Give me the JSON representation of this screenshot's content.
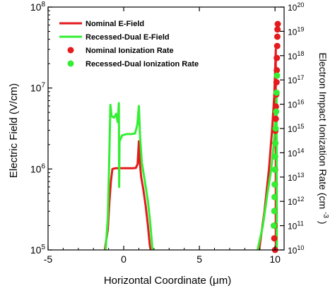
{
  "chart_data": {
    "type": "line",
    "xlabel": "Horizontal Coordinate (μm)",
    "ylabel_left": "Electric Field (V/cm)",
    "ylabel_right_main": "Electron Impact Ionization Rate (cm",
    "ylabel_right_sup": "-3",
    "ylabel_right_close": ")",
    "xlim": [
      -5,
      10.6
    ],
    "ylim_left": [
      100000,
      100000000
    ],
    "ylim_right": [
      10000000000.0,
      1e+20
    ],
    "x_ticks": [
      {
        "value": -5,
        "label": "-5"
      },
      {
        "value": 0,
        "label": "0"
      },
      {
        "value": 5,
        "label": "5"
      },
      {
        "value": 10,
        "label": "10"
      }
    ],
    "y_left_ticks": [
      {
        "exp": 5,
        "label_base": "10",
        "label_exp": "5"
      },
      {
        "exp": 6,
        "label_base": "10",
        "label_exp": "6"
      },
      {
        "exp": 7,
        "label_base": "10",
        "label_exp": "7"
      },
      {
        "exp": 8,
        "label_base": "10",
        "label_exp": "8"
      }
    ],
    "y_right_ticks": [
      {
        "exp": 10,
        "label_base": "10",
        "label_exp": "10"
      },
      {
        "exp": 11,
        "label_base": "10",
        "label_exp": "11"
      },
      {
        "exp": 12,
        "label_base": "10",
        "label_exp": "12"
      },
      {
        "exp": 13,
        "label_base": "10",
        "label_exp": "13"
      },
      {
        "exp": 14,
        "label_base": "10",
        "label_exp": "14"
      },
      {
        "exp": 15,
        "label_base": "10",
        "label_exp": "15"
      },
      {
        "exp": 16,
        "label_base": "10",
        "label_exp": "16"
      },
      {
        "exp": 17,
        "label_base": "10",
        "label_exp": "17"
      },
      {
        "exp": 18,
        "label_base": "10",
        "label_exp": "18"
      },
      {
        "exp": 19,
        "label_base": "10",
        "label_exp": "19"
      },
      {
        "exp": 20,
        "label_base": "10",
        "label_exp": "20"
      }
    ],
    "grid": false,
    "legend_position": "top-left",
    "series": [
      {
        "name": "Nominal E-Field",
        "kind": "line",
        "axis": "left",
        "color": "#e41a1c",
        "points": [
          [
            -1.25,
            100000
          ],
          [
            -1.05,
            180000
          ],
          [
            -0.95,
            380000
          ],
          [
            -0.85,
            700000
          ],
          [
            -0.75,
            1000000
          ],
          [
            -0.55,
            1020000
          ],
          [
            -0.3,
            1020000
          ],
          [
            0.0,
            1020000
          ],
          [
            0.3,
            1020000
          ],
          [
            0.6,
            1020000
          ],
          [
            0.8,
            1030000
          ],
          [
            0.92,
            1150000
          ],
          [
            1.0,
            2200000
          ],
          [
            1.05,
            1300000
          ],
          [
            1.15,
            800000
          ],
          [
            1.3,
            550000
          ],
          [
            1.45,
            350000
          ],
          [
            1.6,
            200000
          ],
          [
            1.72,
            115000
          ],
          [
            1.78,
            100000
          ]
        ]
      },
      {
        "name": "Recessed-Dual E-Field",
        "kind": "line",
        "axis": "left",
        "color": "#33ee33",
        "points": [
          [
            -1.2,
            100000
          ],
          [
            -1.05,
            250000
          ],
          [
            -0.95,
            1500000
          ],
          [
            -0.88,
            6200000
          ],
          [
            -0.8,
            4500000
          ],
          [
            -0.65,
            4300000
          ],
          [
            -0.5,
            4800000
          ],
          [
            -0.4,
            3800000
          ],
          [
            -0.32,
            6500000
          ],
          [
            -0.3,
            600000
          ],
          [
            -0.28,
            2200000
          ],
          [
            -0.1,
            2600000
          ],
          [
            0.2,
            2700000
          ],
          [
            0.5,
            2700000
          ],
          [
            0.75,
            2750000
          ],
          [
            0.9,
            3500000
          ],
          [
            1.0,
            6000000
          ],
          [
            1.08,
            2500000
          ],
          [
            1.2,
            1200000
          ],
          [
            1.4,
            700000
          ],
          [
            1.6,
            400000
          ],
          [
            1.75,
            220000
          ],
          [
            1.85,
            130000
          ],
          [
            1.9,
            100000
          ]
        ]
      },
      {
        "name": "Nominal E-Field (drain)",
        "kind": "line",
        "axis": "left",
        "color": "#e41a1c",
        "points": [
          [
            8.95,
            100000
          ],
          [
            9.3,
            300000
          ],
          [
            9.6,
            1000000
          ],
          [
            9.8,
            3000000
          ],
          [
            9.95,
            8000000
          ],
          [
            10.05,
            30000000
          ],
          [
            10.05,
            100000
          ]
        ]
      },
      {
        "name": "Recessed-Dual E-Field (drain)",
        "kind": "line",
        "axis": "left",
        "color": "#33ee33",
        "points": [
          [
            8.85,
            100000
          ],
          [
            9.2,
            200000
          ],
          [
            9.5,
            500000
          ],
          [
            9.75,
            1000000
          ],
          [
            9.92,
            2000000
          ],
          [
            10.1,
            8000000
          ],
          [
            10.12,
            100000
          ]
        ]
      },
      {
        "name": "Nominal Ionization Rate",
        "kind": "scatter",
        "axis": "right",
        "color": "#e41a1c",
        "points": [
          [
            10.0,
            10000000000.0
          ],
          [
            9.95,
            30000000000.0
          ],
          [
            9.96,
            100000000000.0
          ],
          [
            9.97,
            400000000000.0
          ],
          [
            9.98,
            1500000000000.0
          ],
          [
            9.99,
            5000000000000.0
          ],
          [
            10.0,
            20000000000000.0
          ],
          [
            10.0,
            70000000000000.0
          ],
          [
            10.02,
            250000000000000.0
          ],
          [
            10.02,
            800000000000000.0
          ],
          [
            10.05,
            2500000000000000.0
          ],
          [
            10.06,
            8000000000000000.0
          ],
          [
            10.08,
            2.5e+16
          ],
          [
            10.1,
            8e+16
          ],
          [
            10.12,
            2.5e+17
          ],
          [
            10.12,
            8e+17
          ],
          [
            10.14,
            2.5e+18
          ],
          [
            10.15,
            6e+18
          ],
          [
            10.16,
            1.2e+19
          ],
          [
            10.18,
            2e+19
          ]
        ]
      },
      {
        "name": "Recessed-Dual Ionization Rate",
        "kind": "scatter",
        "axis": "right",
        "color": "#33ee33",
        "points": [
          [
            9.92,
            100000000000.0
          ],
          [
            9.95,
            400000000000.0
          ],
          [
            9.97,
            1500000000000.0
          ],
          [
            9.98,
            5000000000000.0
          ],
          [
            9.99,
            20000000000000.0
          ],
          [
            10.0,
            70000000000000.0
          ],
          [
            10.02,
            250000000000000.0
          ],
          [
            10.04,
            1000000000000000.0
          ],
          [
            10.07,
            5000000000000000.0
          ],
          [
            10.1,
            3e+16
          ],
          [
            10.13,
            1.5e+17
          ]
        ]
      }
    ],
    "legend": [
      {
        "label": "Nominal E-Field",
        "kind": "line",
        "color": "#e41a1c"
      },
      {
        "label": "Recessed-Dual E-Field",
        "kind": "line",
        "color": "#33ee33"
      },
      {
        "label": "Nominal Ionization Rate",
        "kind": "scatter",
        "color": "#e41a1c"
      },
      {
        "label": "Recessed-Dual Ionization Rate",
        "kind": "scatter",
        "color": "#33ee33"
      }
    ]
  }
}
